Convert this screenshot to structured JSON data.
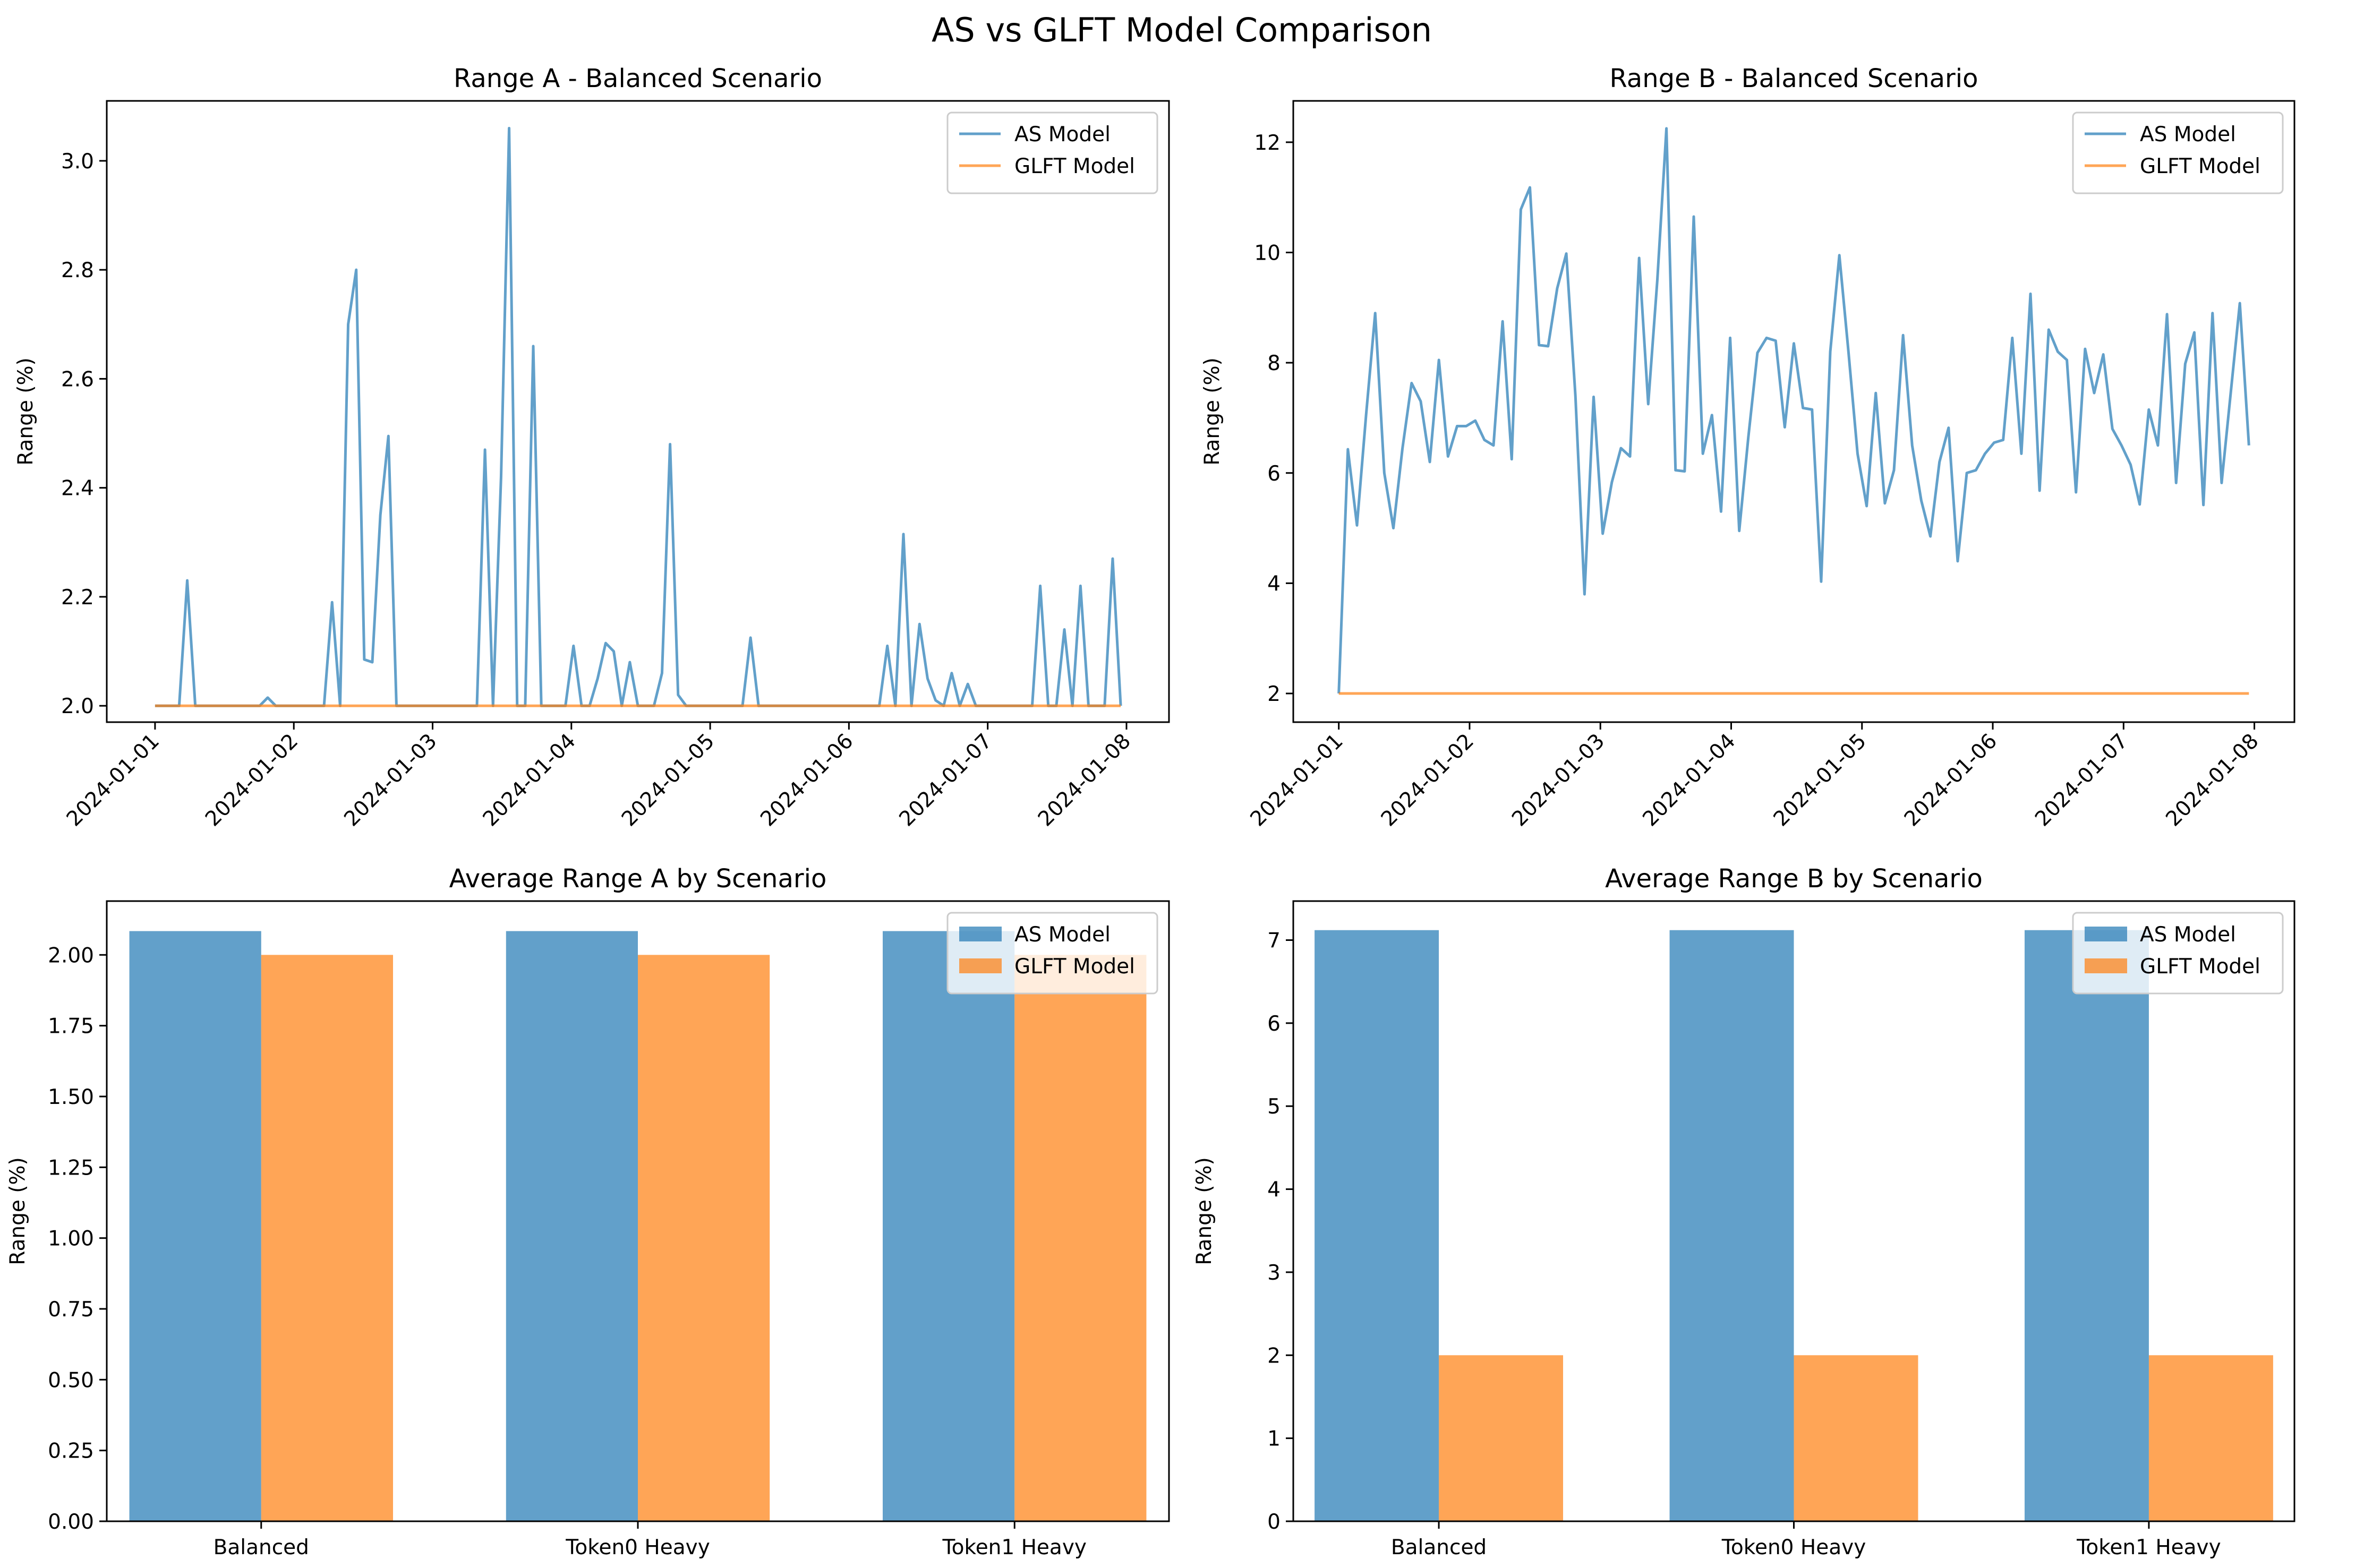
{
  "suptitle": "AS vs GLFT Model Comparison",
  "colors": {
    "as": "#1f77b4",
    "glft": "#ff7f0e"
  },
  "legend": {
    "as_label": "AS Model",
    "glft_label": "GLFT Model"
  },
  "chart_data": [
    {
      "type": "line",
      "title": "Range A - Balanced Scenario",
      "xlabel": "",
      "ylabel": "Range (%)",
      "x_ticks": [
        "2024-01-01",
        "2024-01-02",
        "2024-01-03",
        "2024-01-04",
        "2024-01-05",
        "2024-01-06",
        "2024-01-07",
        "2024-01-08"
      ],
      "x_range": [
        "2024-01-01 00:00",
        "2024-01-07 23:00"
      ],
      "ylim": [
        1.97,
        3.11
      ],
      "y_ticks": [
        2.0,
        2.2,
        2.4,
        2.6,
        2.8,
        3.0
      ],
      "y_tick_labels": [
        "2.0",
        "2.2",
        "2.4",
        "2.6",
        "2.8",
        "3.0"
      ],
      "legend_position": "upper right",
      "sample_interval_hours": 2,
      "series": [
        {
          "name": "AS Model",
          "values": [
            2.0,
            2.0,
            2.0,
            2.0,
            2.23,
            2.0,
            2.0,
            2.0,
            2.0,
            2.0,
            2.0,
            2.0,
            2.0,
            2.0,
            2.015,
            2.0,
            2.0,
            2.0,
            2.0,
            2.0,
            2.0,
            2.0,
            2.19,
            2.0,
            2.7,
            2.8,
            2.085,
            2.08,
            2.35,
            2.495,
            2.0,
            2.0,
            2.0,
            2.0,
            2.0,
            2.0,
            2.0,
            2.0,
            2.0,
            2.0,
            2.0,
            2.47,
            2.0,
            2.42,
            3.06,
            2.0,
            2.0,
            2.66,
            2.0,
            2.0,
            2.0,
            2.0,
            2.11,
            2.0,
            2.0,
            2.05,
            2.115,
            2.1,
            2.0,
            2.08,
            2.0,
            2.0,
            2.0,
            2.06,
            2.48,
            2.02,
            2.0,
            2.0,
            2.0,
            2.0,
            2.0,
            2.0,
            2.0,
            2.0,
            2.125,
            2.0,
            2.0,
            2.0,
            2.0,
            2.0,
            2.0,
            2.0,
            2.0,
            2.0,
            2.0,
            2.0,
            2.0,
            2.0,
            2.0,
            2.0,
            2.0,
            2.11,
            2.0,
            2.315,
            2.0,
            2.15,
            2.05,
            2.01,
            2.0,
            2.06,
            2.0,
            2.04,
            2.0,
            2.0,
            2.0,
            2.0,
            2.0,
            2.0,
            2.0,
            2.0,
            2.22,
            2.0,
            2.0,
            2.14,
            2.0,
            2.22,
            2.0,
            2.0,
            2.0,
            2.27,
            2.0
          ]
        },
        {
          "name": "GLFT Model",
          "values": [
            2.0,
            2.0
          ]
        }
      ]
    },
    {
      "type": "line",
      "title": "Range B - Balanced Scenario",
      "xlabel": "",
      "ylabel": "Range (%)",
      "x_ticks": [
        "2024-01-01",
        "2024-01-02",
        "2024-01-03",
        "2024-01-04",
        "2024-01-05",
        "2024-01-06",
        "2024-01-07",
        "2024-01-08"
      ],
      "x_range": [
        "2024-01-01 00:00",
        "2024-01-07 23:00"
      ],
      "ylim": [
        1.48,
        12.75
      ],
      "y_ticks": [
        2,
        4,
        6,
        8,
        10,
        12
      ],
      "y_tick_labels": [
        "2",
        "4",
        "6",
        "8",
        "10",
        "12"
      ],
      "legend_position": "upper right",
      "sample_interval_hours": 2,
      "series": [
        {
          "name": "AS Model",
          "values": [
            2.0,
            6.43,
            5.05,
            7.05,
            8.9,
            6.0,
            5.0,
            6.45,
            7.63,
            7.3,
            6.2,
            8.05,
            6.3,
            6.85,
            6.85,
            6.95,
            6.6,
            6.5,
            8.75,
            6.25,
            10.78,
            11.18,
            8.32,
            8.3,
            9.35,
            9.98,
            7.4,
            3.8,
            7.38,
            4.9,
            5.83,
            6.45,
            6.3,
            9.9,
            7.25,
            9.5,
            12.25,
            6.05,
            6.03,
            10.65,
            6.35,
            7.05,
            5.3,
            8.45,
            4.95,
            6.65,
            8.18,
            8.45,
            8.4,
            6.83,
            8.35,
            7.18,
            7.15,
            4.03,
            8.2,
            9.95,
            8.2,
            6.35,
            5.4,
            7.45,
            5.45,
            6.05,
            8.5,
            6.5,
            5.5,
            4.85,
            6.2,
            6.82,
            4.4,
            6.0,
            6.05,
            6.35,
            6.55,
            6.6,
            8.45,
            6.35,
            9.25,
            5.68,
            8.6,
            8.2,
            8.05,
            5.65,
            8.25,
            7.45,
            8.15,
            6.8,
            6.5,
            6.15,
            5.43,
            7.15,
            6.5,
            8.88,
            5.82,
            7.98,
            8.55,
            5.42,
            8.9,
            5.82,
            7.45,
            9.08,
            6.5
          ]
        },
        {
          "name": "GLFT Model",
          "values": [
            2.0,
            2.0
          ]
        }
      ]
    },
    {
      "type": "bar",
      "title": "Average Range A by Scenario",
      "xlabel": "",
      "ylabel": "Range (%)",
      "categories": [
        "Balanced",
        "Token0 Heavy",
        "Token1 Heavy"
      ],
      "ylim": [
        0,
        2.19
      ],
      "y_ticks": [
        0,
        0.25,
        0.5,
        0.75,
        1.0,
        1.25,
        1.5,
        1.75,
        2.0
      ],
      "y_tick_labels": [
        "0.00",
        "0.25",
        "0.50",
        "0.75",
        "1.00",
        "1.25",
        "1.50",
        "1.75",
        "2.00"
      ],
      "legend_position": "upper right",
      "series": [
        {
          "name": "AS Model",
          "values": [
            2.084,
            2.084,
            2.084
          ]
        },
        {
          "name": "GLFT Model",
          "values": [
            2.0,
            2.0,
            2.0
          ]
        }
      ]
    },
    {
      "type": "bar",
      "title": "Average Range B by Scenario",
      "xlabel": "",
      "ylabel": "Range (%)",
      "categories": [
        "Balanced",
        "Token0 Heavy",
        "Token1 Heavy"
      ],
      "ylim": [
        0,
        7.47
      ],
      "y_ticks": [
        0,
        1,
        2,
        3,
        4,
        5,
        6,
        7
      ],
      "y_tick_labels": [
        "0",
        "1",
        "2",
        "3",
        "4",
        "5",
        "6",
        "7"
      ],
      "legend_position": "upper right",
      "series": [
        {
          "name": "AS Model",
          "values": [
            7.12,
            7.12,
            7.12
          ]
        },
        {
          "name": "GLFT Model",
          "values": [
            2.0,
            2.0,
            2.0
          ]
        }
      ]
    }
  ]
}
